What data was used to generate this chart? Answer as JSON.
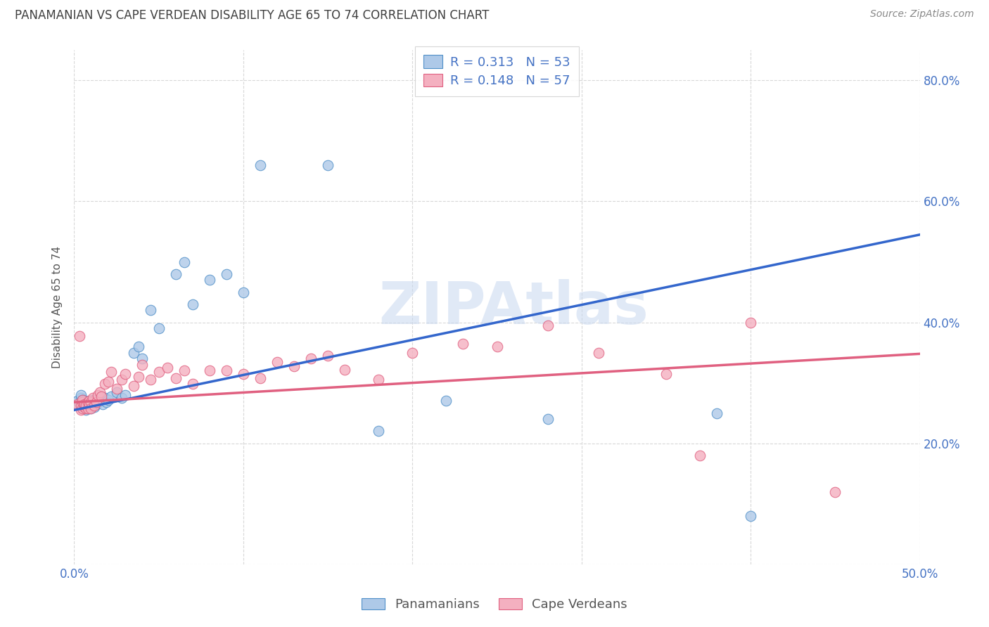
{
  "title": "PANAMANIAN VS CAPE VERDEAN DISABILITY AGE 65 TO 74 CORRELATION CHART",
  "source": "Source: ZipAtlas.com",
  "ylabel": "Disability Age 65 to 74",
  "xlim": [
    0.0,
    0.5
  ],
  "ylim": [
    0.0,
    0.85
  ],
  "x_ticks": [
    0.0,
    0.1,
    0.2,
    0.3,
    0.4,
    0.5
  ],
  "x_tick_labels": [
    "0.0%",
    "",
    "",
    "",
    "",
    "50.0%"
  ],
  "y_ticks": [
    0.0,
    0.2,
    0.4,
    0.6,
    0.8
  ],
  "y_tick_labels_right": [
    "",
    "20.0%",
    "40.0%",
    "60.0%",
    "80.0%"
  ],
  "legend_R1": "R = 0.313",
  "legend_N1": "N = 53",
  "legend_R2": "R = 0.148",
  "legend_N2": "N = 57",
  "blue_fill": "#aec9e8",
  "pink_fill": "#f4b0c0",
  "blue_edge": "#5090c8",
  "pink_edge": "#e06080",
  "blue_line_color": "#3366cc",
  "pink_line_color": "#e06080",
  "legend_text_color": "#4472c4",
  "title_color": "#404040",
  "axis_tick_color": "#4472c4",
  "source_color": "#888888",
  "watermark_color": "#c8d8f0",
  "grid_color": "#d8d8d8",
  "bottom_legend_color": "#555555",
  "blue_x": [
    0.002,
    0.003,
    0.004,
    0.004,
    0.005,
    0.005,
    0.005,
    0.006,
    0.006,
    0.007,
    0.007,
    0.007,
    0.008,
    0.008,
    0.008,
    0.009,
    0.009,
    0.01,
    0.01,
    0.011,
    0.011,
    0.012,
    0.012,
    0.013,
    0.014,
    0.015,
    0.016,
    0.017,
    0.018,
    0.019,
    0.02,
    0.022,
    0.025,
    0.028,
    0.03,
    0.035,
    0.038,
    0.04,
    0.045,
    0.05,
    0.06,
    0.065,
    0.07,
    0.08,
    0.09,
    0.1,
    0.11,
    0.15,
    0.18,
    0.22,
    0.28,
    0.38,
    0.4
  ],
  "blue_y": [
    0.27,
    0.265,
    0.275,
    0.28,
    0.26,
    0.268,
    0.272,
    0.265,
    0.27,
    0.26,
    0.265,
    0.255,
    0.262,
    0.268,
    0.258,
    0.265,
    0.27,
    0.265,
    0.258,
    0.268,
    0.272,
    0.26,
    0.27,
    0.265,
    0.268,
    0.27,
    0.278,
    0.265,
    0.275,
    0.268,
    0.272,
    0.278,
    0.285,
    0.275,
    0.28,
    0.35,
    0.36,
    0.34,
    0.42,
    0.39,
    0.48,
    0.5,
    0.43,
    0.47,
    0.48,
    0.45,
    0.66,
    0.66,
    0.22,
    0.27,
    0.24,
    0.25,
    0.08
  ],
  "pink_x": [
    0.002,
    0.003,
    0.004,
    0.004,
    0.005,
    0.005,
    0.005,
    0.006,
    0.006,
    0.007,
    0.007,
    0.008,
    0.008,
    0.009,
    0.009,
    0.01,
    0.01,
    0.011,
    0.012,
    0.013,
    0.014,
    0.015,
    0.016,
    0.018,
    0.02,
    0.022,
    0.025,
    0.028,
    0.03,
    0.035,
    0.038,
    0.04,
    0.045,
    0.05,
    0.055,
    0.06,
    0.065,
    0.07,
    0.08,
    0.09,
    0.1,
    0.11,
    0.12,
    0.13,
    0.14,
    0.15,
    0.16,
    0.18,
    0.2,
    0.23,
    0.25,
    0.28,
    0.31,
    0.35,
    0.37,
    0.4,
    0.45
  ],
  "pink_y": [
    0.265,
    0.378,
    0.255,
    0.262,
    0.258,
    0.268,
    0.272,
    0.26,
    0.265,
    0.258,
    0.262,
    0.268,
    0.258,
    0.27,
    0.265,
    0.268,
    0.258,
    0.275,
    0.262,
    0.268,
    0.28,
    0.285,
    0.278,
    0.298,
    0.302,
    0.318,
    0.29,
    0.305,
    0.315,
    0.295,
    0.31,
    0.33,
    0.305,
    0.318,
    0.325,
    0.308,
    0.32,
    0.298,
    0.32,
    0.32,
    0.315,
    0.308,
    0.335,
    0.328,
    0.34,
    0.345,
    0.322,
    0.305,
    0.35,
    0.365,
    0.36,
    0.395,
    0.35,
    0.315,
    0.18,
    0.4,
    0.12
  ],
  "blue_line_x": [
    0.0,
    0.5
  ],
  "blue_line_y": [
    0.255,
    0.545
  ],
  "pink_line_x": [
    0.0,
    0.5
  ],
  "pink_line_y": [
    0.268,
    0.348
  ]
}
